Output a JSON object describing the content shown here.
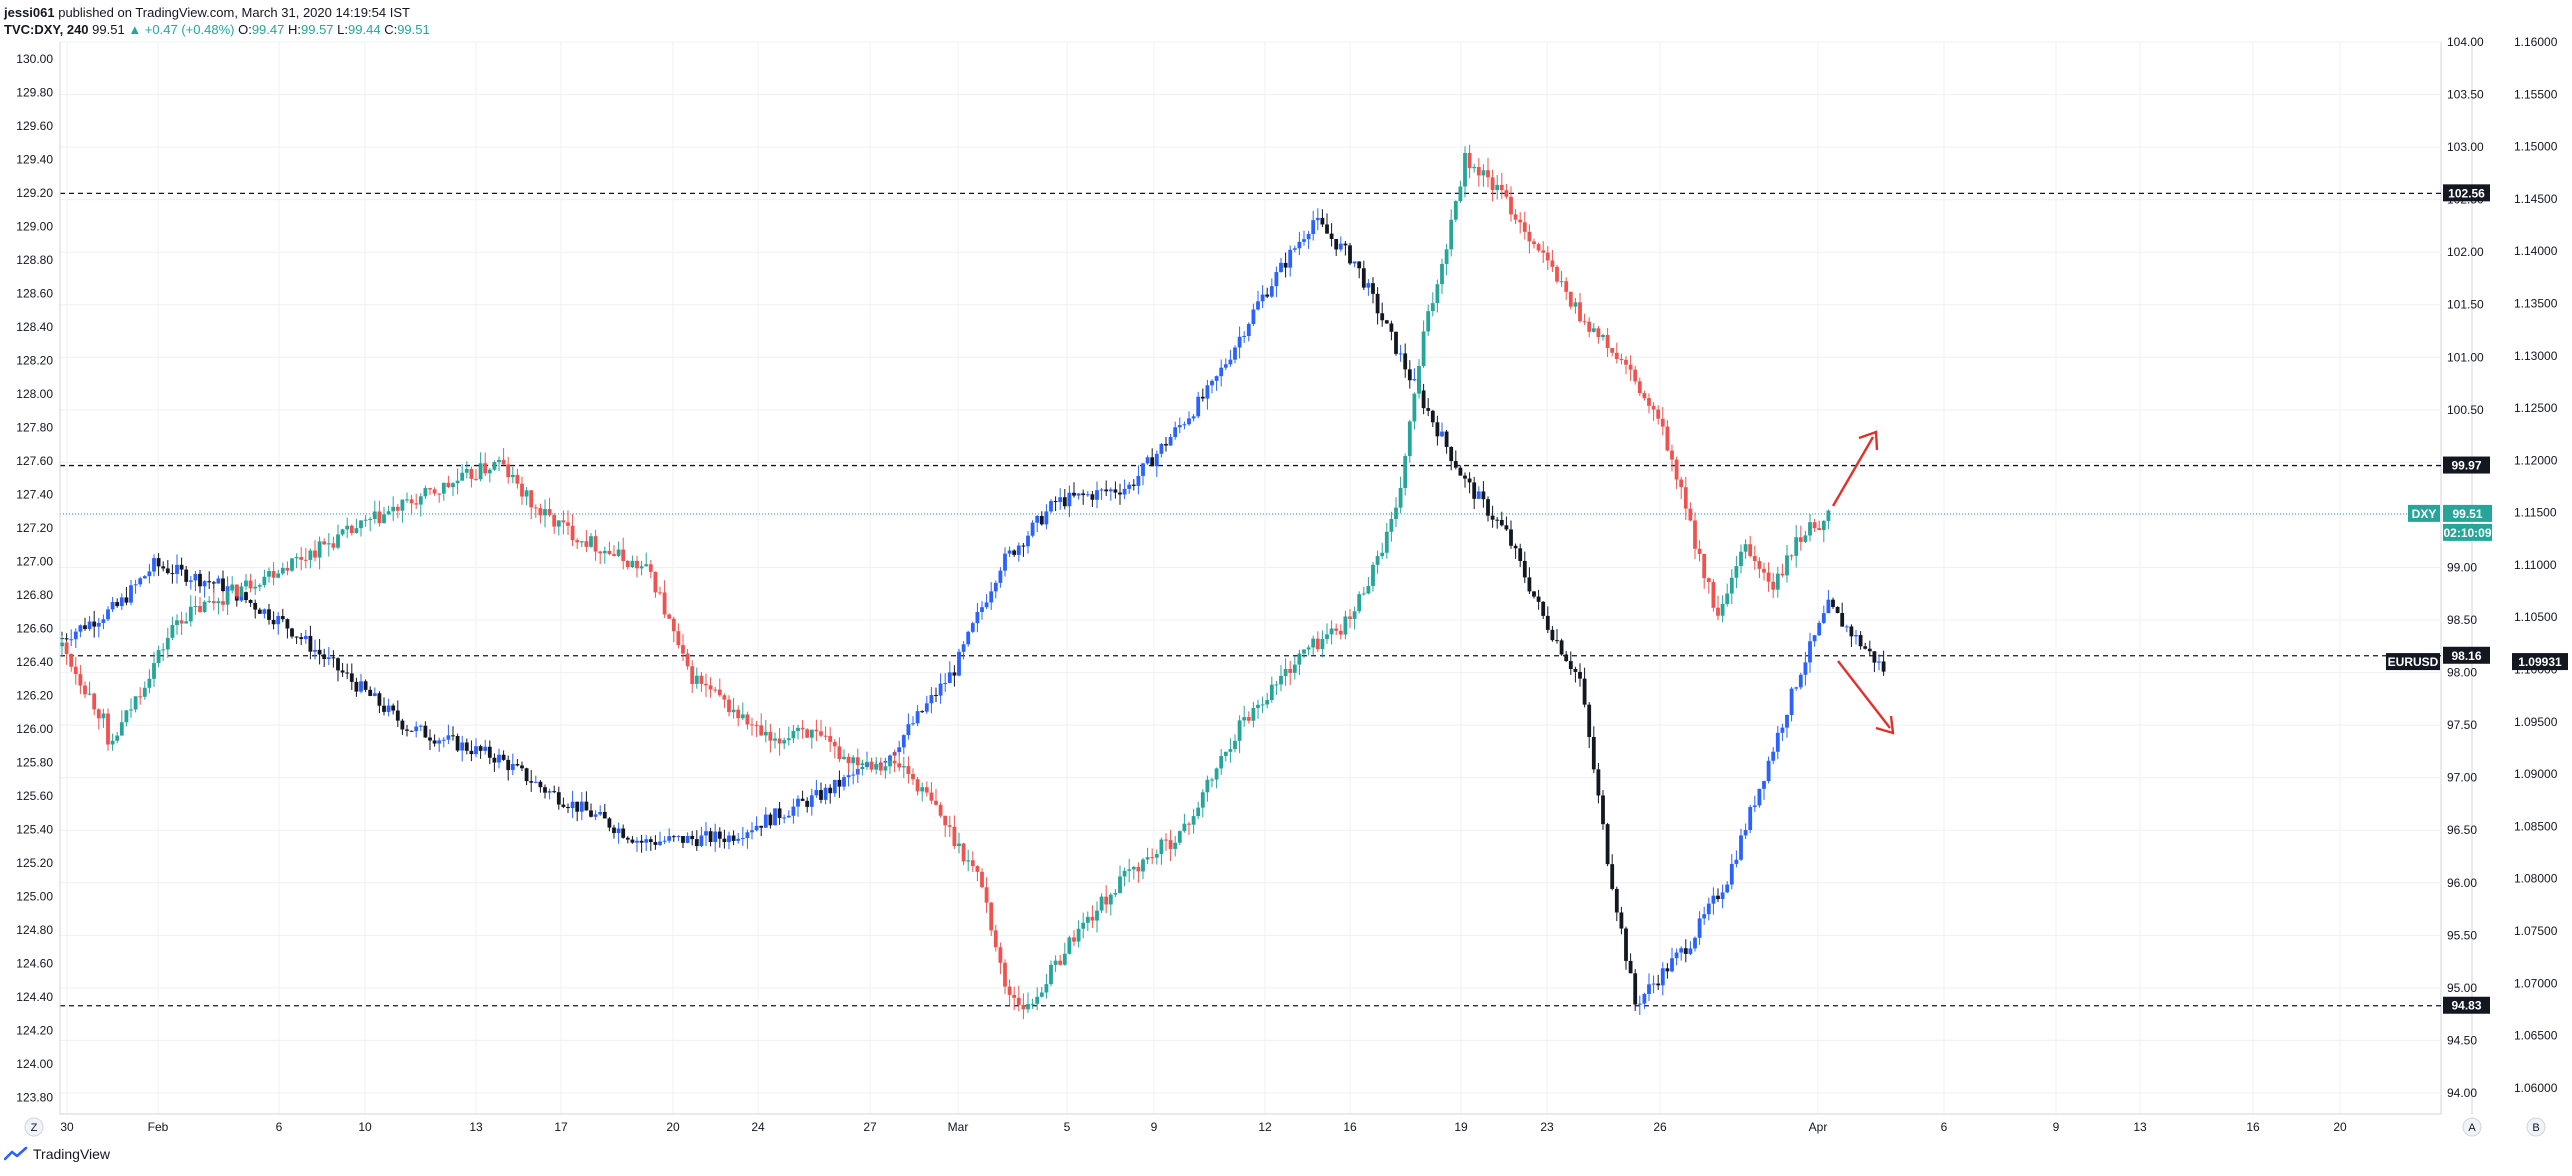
{
  "header": {
    "author": "jessi061",
    "published": " published on TradingView.com, March 31, 2020 14:19:54 IST",
    "symbol_line": "TVC:DXY, 240",
    "last": "99.51",
    "change_arrow": "▲",
    "change": "+0.47 (+0.48%)",
    "o_label": "O:",
    "o_value": "99.47",
    "h_label": "H:",
    "h_value": "99.57",
    "l_label": "L:",
    "l_value": "99.44",
    "c_label": "C:",
    "c_value": "99.51"
  },
  "footer": {
    "brand": "TradingView"
  },
  "colors": {
    "dxy_up": "#26a69a",
    "dxy_down": "#ef5350",
    "eur_up": "#2962ff",
    "eur_down": "#131722",
    "grid": "#eef0f3",
    "dashed": "#131722",
    "arrow": "#e0312b"
  },
  "chart_data": {
    "type": "candlestick",
    "left_axis": {
      "ticks": [
        "130.00",
        "129.80",
        "129.60",
        "129.40",
        "129.20",
        "129.00",
        "128.80",
        "128.60",
        "128.40",
        "128.20",
        "128.00",
        "127.80",
        "127.60",
        "127.40",
        "127.20",
        "127.00",
        "126.80",
        "126.60",
        "126.40",
        "126.20",
        "126.00",
        "125.80",
        "125.60",
        "125.40",
        "125.20",
        "125.00",
        "124.80",
        "124.60",
        "124.40",
        "124.20",
        "124.00",
        "123.80"
      ],
      "range": [
        123.7,
        130.1
      ]
    },
    "right_axis_dxy": {
      "ticks": [
        "104.00",
        "103.50",
        "103.00",
        "102.50",
        "102.00",
        "101.50",
        "101.00",
        "100.50",
        "100.00",
        "99.50",
        "99.00",
        "98.50",
        "98.00",
        "97.50",
        "97.00",
        "96.50",
        "96.00",
        "95.50",
        "95.00",
        "94.50",
        "94.00"
      ],
      "range": [
        93.8,
        104.0
      ]
    },
    "right_axis_eurusd": {
      "ticks": [
        "1.16000",
        "1.15500",
        "1.15000",
        "1.14500",
        "1.14000",
        "1.13500",
        "1.13000",
        "1.12500",
        "1.12000",
        "1.11500",
        "1.11000",
        "1.10500",
        "1.10000",
        "1.09500",
        "1.09000",
        "1.08500",
        "1.08000",
        "1.07500",
        "1.07000",
        "1.06500",
        "1.06000"
      ],
      "range": [
        1.0575,
        1.16
      ]
    },
    "x_axis": {
      "ticks": [
        "30",
        "Feb",
        "6",
        "10",
        "13",
        "17",
        "20",
        "24",
        "27",
        "Mar",
        "5",
        "9",
        "12",
        "16",
        "19",
        "23",
        "26",
        "Apr",
        "6",
        "9",
        "13",
        "16",
        "20"
      ]
    },
    "horizontal_levels": [
      102.56,
      99.97,
      98.16,
      94.83
    ],
    "price_tags": {
      "level_102": "102.56",
      "level_99": "99.97",
      "dxy_name": "DXY",
      "dxy_value": "99.51",
      "countdown": "02:10:09",
      "level_98": "98.16",
      "eur_name": "EURUSD",
      "eur_value": "1.09931",
      "level_94": "94.83"
    },
    "corner_labels": {
      "left": "Z",
      "mid": "A",
      "right": "B"
    },
    "dxy_anchor_points": [
      [
        0,
        98.25
      ],
      [
        9,
        97.55
      ],
      [
        10,
        97.25
      ],
      [
        25,
        98.5
      ],
      [
        70,
        99.5
      ],
      [
        85,
        99.8
      ],
      [
        95,
        100.0
      ],
      [
        103,
        99.55
      ],
      [
        112,
        99.3
      ],
      [
        128,
        98.95
      ],
      [
        136,
        98.0
      ],
      [
        155,
        97.3
      ],
      [
        160,
        97.5
      ],
      [
        170,
        97.2
      ],
      [
        183,
        97.1
      ],
      [
        190,
        96.7
      ],
      [
        200,
        96.0
      ],
      [
        205,
        95.0
      ],
      [
        210,
        94.8
      ],
      [
        220,
        95.5
      ],
      [
        232,
        96.1
      ],
      [
        244,
        96.5
      ],
      [
        256,
        97.5
      ],
      [
        270,
        98.2
      ],
      [
        280,
        98.5
      ],
      [
        290,
        99.5
      ],
      [
        296,
        101.2
      ],
      [
        300,
        101.9
      ],
      [
        305,
        102.9
      ],
      [
        312,
        102.6
      ],
      [
        320,
        102.1
      ],
      [
        330,
        101.4
      ],
      [
        340,
        100.9
      ],
      [
        348,
        100.3
      ],
      [
        354,
        99.4
      ],
      [
        360,
        98.5
      ],
      [
        366,
        99.2
      ],
      [
        372,
        98.8
      ],
      [
        378,
        99.3
      ],
      [
        384,
        99.5
      ]
    ],
    "eurusd_anchor_points": [
      [
        0,
        1.103
      ],
      [
        12,
        1.106
      ],
      [
        20,
        1.11
      ],
      [
        35,
        1.108
      ],
      [
        48,
        1.1045
      ],
      [
        60,
        1.1
      ],
      [
        75,
        1.0945
      ],
      [
        95,
        1.0915
      ],
      [
        105,
        1.0885
      ],
      [
        118,
        1.0855
      ],
      [
        126,
        1.0835
      ],
      [
        145,
        1.084
      ],
      [
        165,
        1.088
      ],
      [
        180,
        1.092
      ],
      [
        194,
        1.1
      ],
      [
        204,
        1.11
      ],
      [
        216,
        1.116
      ],
      [
        232,
        1.1175
      ],
      [
        250,
        1.127
      ],
      [
        260,
        1.135
      ],
      [
        272,
        1.143
      ],
      [
        281,
        1.139
      ],
      [
        293,
        1.128
      ],
      [
        305,
        1.118
      ],
      [
        314,
        1.113
      ],
      [
        322,
        1.105
      ],
      [
        330,
        1.099
      ],
      [
        336,
        1.082
      ],
      [
        342,
        1.068
      ],
      [
        346,
        1.07
      ],
      [
        354,
        1.074
      ],
      [
        362,
        1.08
      ],
      [
        370,
        1.09
      ],
      [
        378,
        1.1
      ],
      [
        384,
        1.106
      ],
      [
        390,
        1.103
      ],
      [
        396,
        1.1
      ]
    ]
  }
}
